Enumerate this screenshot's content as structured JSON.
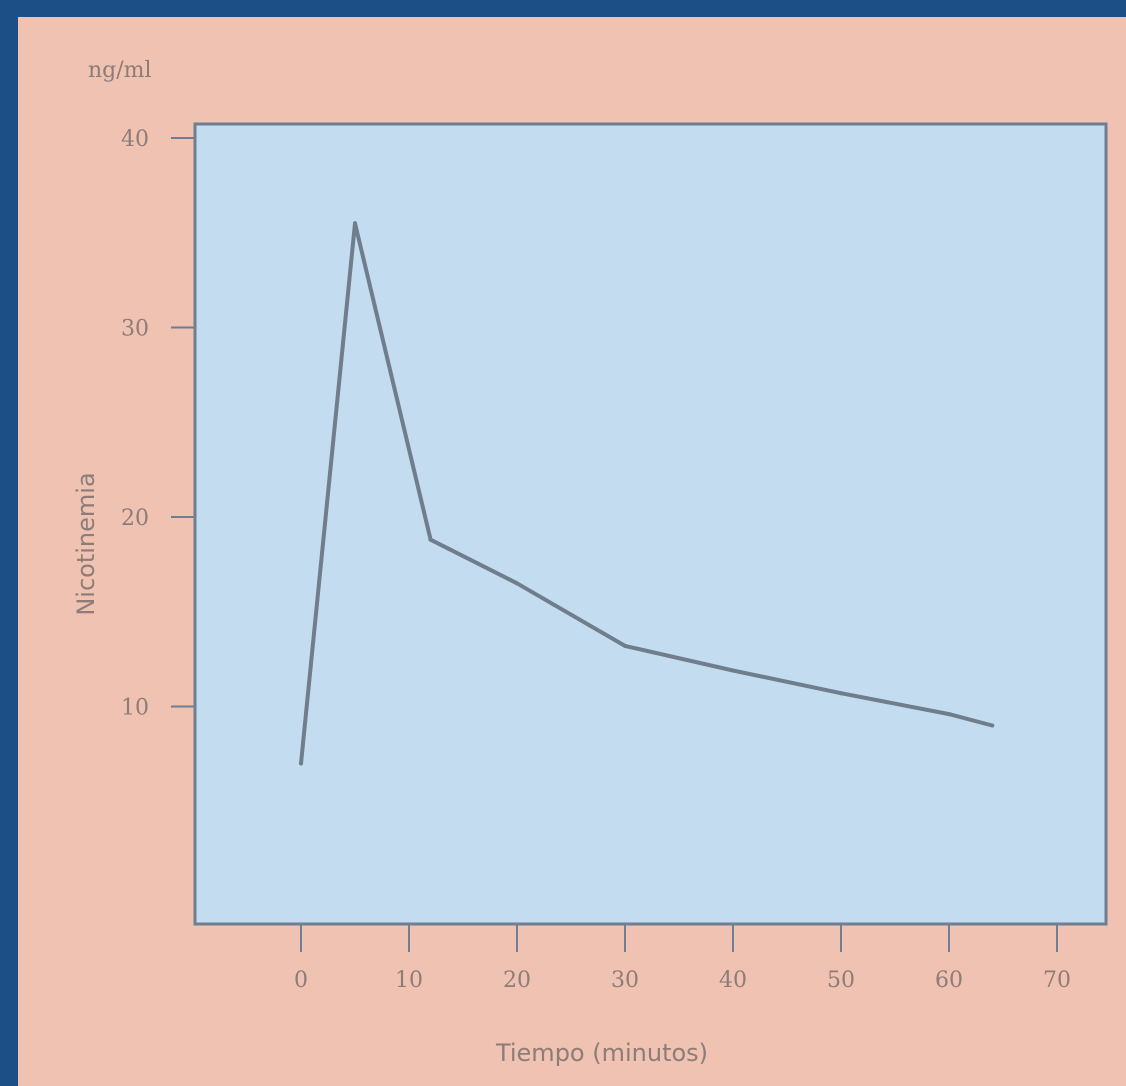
{
  "colors": {
    "border": "#1c4f86",
    "outer_background": "#efc2b2",
    "plot_background": "#c3dcef",
    "plot_border": "#6e7f92",
    "line": "#6f7d8c",
    "text": "#8d7c78"
  },
  "chart_data": {
    "type": "line",
    "title": "",
    "unit_label": "ng/ml",
    "xlabel": "Tiempo (minutos)",
    "ylabel": "Nicotinemia",
    "xlim": [
      -10,
      75
    ],
    "ylim": [
      0,
      42
    ],
    "x_ticks": [
      0,
      10,
      20,
      30,
      40,
      50,
      60,
      70
    ],
    "x_tick_labels": [
      "0",
      "10",
      "20",
      "30",
      "40",
      "50",
      "60",
      "70"
    ],
    "y_ticks": [
      10,
      20,
      30,
      40
    ],
    "y_tick_labels": [
      "10",
      "20",
      "30",
      "40"
    ],
    "grid": false,
    "legend": "none",
    "series": [
      {
        "x": [
          0,
          5,
          12,
          20,
          30,
          40,
          50,
          60,
          64
        ],
        "y": [
          7,
          35.5,
          18.8,
          16.5,
          13.2,
          11.9,
          10.7,
          9.6,
          9.0
        ]
      }
    ]
  }
}
